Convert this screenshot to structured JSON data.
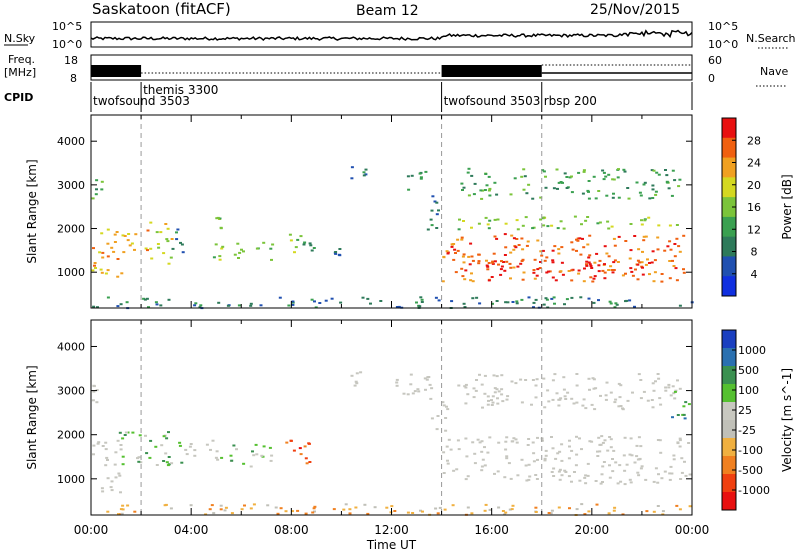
{
  "header": {
    "station": "Saskatoon (fitACF)",
    "beam": "Beam 12",
    "date": "25/Nov/2015"
  },
  "strip_panels": {
    "nsky_label": "N.Sky",
    "nsky_ticks": [
      "10^5",
      "10^0"
    ],
    "nsearch_label": "N.Search",
    "nsearch_ticks": [
      "10^5",
      "10^0"
    ],
    "freq_label_1": "Freq.",
    "freq_label_2": "[MHz]",
    "freq_ticks": [
      "18",
      "8"
    ],
    "nave_label": "Nave",
    "nave_ticks": [
      "60",
      "0"
    ],
    "cpid_label": "CPID",
    "cpid_segments": [
      {
        "name": "twofsound 3503",
        "start_hour": 0.0,
        "end_hour": 2.0
      },
      {
        "name": "themis 3300",
        "start_hour": 2.0,
        "end_hour": 14.0
      },
      {
        "name": "twofsound 3503",
        "start_hour": 14.0,
        "end_hour": 18.0
      },
      {
        "name": "rbsp 200",
        "start_hour": 18.0,
        "end_hour": 24.0
      }
    ]
  },
  "colors": {
    "power_scale": [
      "#1030e0",
      "#2050b0",
      "#2e7a5a",
      "#3aa050",
      "#7bc43a",
      "#d4d820",
      "#f0a020",
      "#f06010",
      "#e81010"
    ],
    "velocity_scale": [
      "#1a3fc0",
      "#2a70b0",
      "#3a9050",
      "#55c030",
      "#c8c8c0",
      "#c0c0b8",
      "#f0b040",
      "#f08020",
      "#f04010",
      "#e81010"
    ],
    "grey_scatter": "#c6c6bf"
  },
  "chart_data": [
    {
      "type": "heatmap",
      "title": "Power",
      "ylabel": "Slant Range [km]",
      "xlabel": "",
      "x_unit": "hour UT",
      "xlim": [
        0,
        24
      ],
      "ylim": [
        180,
        4600
      ],
      "yticks": [
        "1000",
        "2000",
        "3000",
        "4000"
      ],
      "colorbar_label": "Power [dB]",
      "colorbar_ticks": [
        "4",
        "8",
        "12",
        "16",
        "20",
        "24",
        "28"
      ],
      "regions": [
        {
          "t0": 0.0,
          "t1": 0.4,
          "r0": 2700,
          "r1": 3200,
          "level": 3
        },
        {
          "t0": 0.0,
          "t1": 1.3,
          "r0": 900,
          "r1": 2100,
          "level": 6
        },
        {
          "t0": 1.3,
          "t1": 2.3,
          "r0": 1400,
          "r1": 2000,
          "level": 6
        },
        {
          "t0": 2.3,
          "t1": 3.2,
          "r0": 1200,
          "r1": 2200,
          "level": 5
        },
        {
          "t0": 3.2,
          "t1": 3.7,
          "r0": 1300,
          "r1": 2100,
          "level": 2
        },
        {
          "t0": 4.9,
          "t1": 5.2,
          "r0": 2000,
          "r1": 2300,
          "level": 4
        },
        {
          "t0": 4.8,
          "t1": 5.2,
          "r0": 1300,
          "r1": 1700,
          "level": 4
        },
        {
          "t0": 5.7,
          "t1": 6.1,
          "r0": 1300,
          "r1": 1700,
          "level": 4
        },
        {
          "t0": 6.5,
          "t1": 7.2,
          "r0": 1300,
          "r1": 1700,
          "level": 3
        },
        {
          "t0": 7.7,
          "t1": 8.4,
          "r0": 1400,
          "r1": 1900,
          "level": 4
        },
        {
          "t0": 8.4,
          "t1": 8.9,
          "r0": 1500,
          "r1": 1800,
          "level": 2
        },
        {
          "t0": 9.6,
          "t1": 9.9,
          "r0": 1400,
          "r1": 1600,
          "level": 1
        },
        {
          "t0": 10.3,
          "t1": 11.0,
          "r0": 3150,
          "r1": 3450,
          "level": 2
        },
        {
          "t0": 12.4,
          "t1": 13.4,
          "r0": 2900,
          "r1": 3400,
          "level": 2
        },
        {
          "t0": 13.4,
          "t1": 14.1,
          "r0": 2000,
          "r1": 2900,
          "level": 2
        },
        {
          "t0": 14.0,
          "t1": 23.9,
          "r0": 800,
          "r1": 1900,
          "level": 7
        },
        {
          "t0": 15.0,
          "t1": 22.0,
          "r0": 900,
          "r1": 1300,
          "level": 8
        },
        {
          "t0": 14.6,
          "t1": 23.8,
          "r0": 2000,
          "r1": 2300,
          "level": 4
        },
        {
          "t0": 14.6,
          "t1": 23.5,
          "r0": 2700,
          "r1": 3400,
          "level": 3
        },
        {
          "t0": 0.0,
          "t1": 24.0,
          "r0": 200,
          "r1": 450,
          "level": 2
        }
      ]
    },
    {
      "type": "heatmap",
      "title": "Velocity",
      "ylabel": "Slant Range [km]",
      "xlabel": "Time UT",
      "x_unit": "hour UT",
      "xlim": [
        0,
        24
      ],
      "ylim": [
        180,
        4600
      ],
      "xticks": [
        "00:00",
        "04:00",
        "08:00",
        "12:00",
        "16:00",
        "20:00",
        "00:00"
      ],
      "yticks": [
        "1000",
        "2000",
        "3000",
        "4000"
      ],
      "colorbar_label": "Velocity [m s^-1]",
      "colorbar_ticks": [
        "1000",
        "500",
        "100",
        "25",
        "-25",
        "-100",
        "-500",
        "-1000"
      ],
      "regions": [
        {
          "t0": 0.0,
          "t1": 0.5,
          "r0": 2700,
          "r1": 3200,
          "level": 4
        },
        {
          "t0": 0.0,
          "t1": 1.2,
          "r0": 700,
          "r1": 1900,
          "level": 4
        },
        {
          "t0": 1.0,
          "t1": 3.6,
          "r0": 1300,
          "r1": 2100,
          "level": 3
        },
        {
          "t0": 3.6,
          "t1": 5.0,
          "r0": 1400,
          "r1": 1900,
          "level": 4
        },
        {
          "t0": 5.0,
          "t1": 7.2,
          "r0": 1300,
          "r1": 1800,
          "level": 3
        },
        {
          "t0": 7.6,
          "t1": 8.8,
          "r0": 1300,
          "r1": 1900,
          "level": 8
        },
        {
          "t0": 10.3,
          "t1": 11.0,
          "r0": 3100,
          "r1": 3500,
          "level": 4
        },
        {
          "t0": 12.0,
          "t1": 13.6,
          "r0": 2700,
          "r1": 3400,
          "level": 4
        },
        {
          "t0": 13.5,
          "t1": 14.2,
          "r0": 2000,
          "r1": 2800,
          "level": 4
        },
        {
          "t0": 14.0,
          "t1": 23.9,
          "r0": 900,
          "r1": 2000,
          "level": 4
        },
        {
          "t0": 14.6,
          "t1": 23.6,
          "r0": 2600,
          "r1": 3400,
          "level": 4
        },
        {
          "t0": 23.1,
          "t1": 23.9,
          "r0": 2300,
          "r1": 3000,
          "level": 2
        },
        {
          "t0": 0.0,
          "t1": 24.0,
          "r0": 200,
          "r1": 450,
          "level": 6
        }
      ]
    }
  ]
}
